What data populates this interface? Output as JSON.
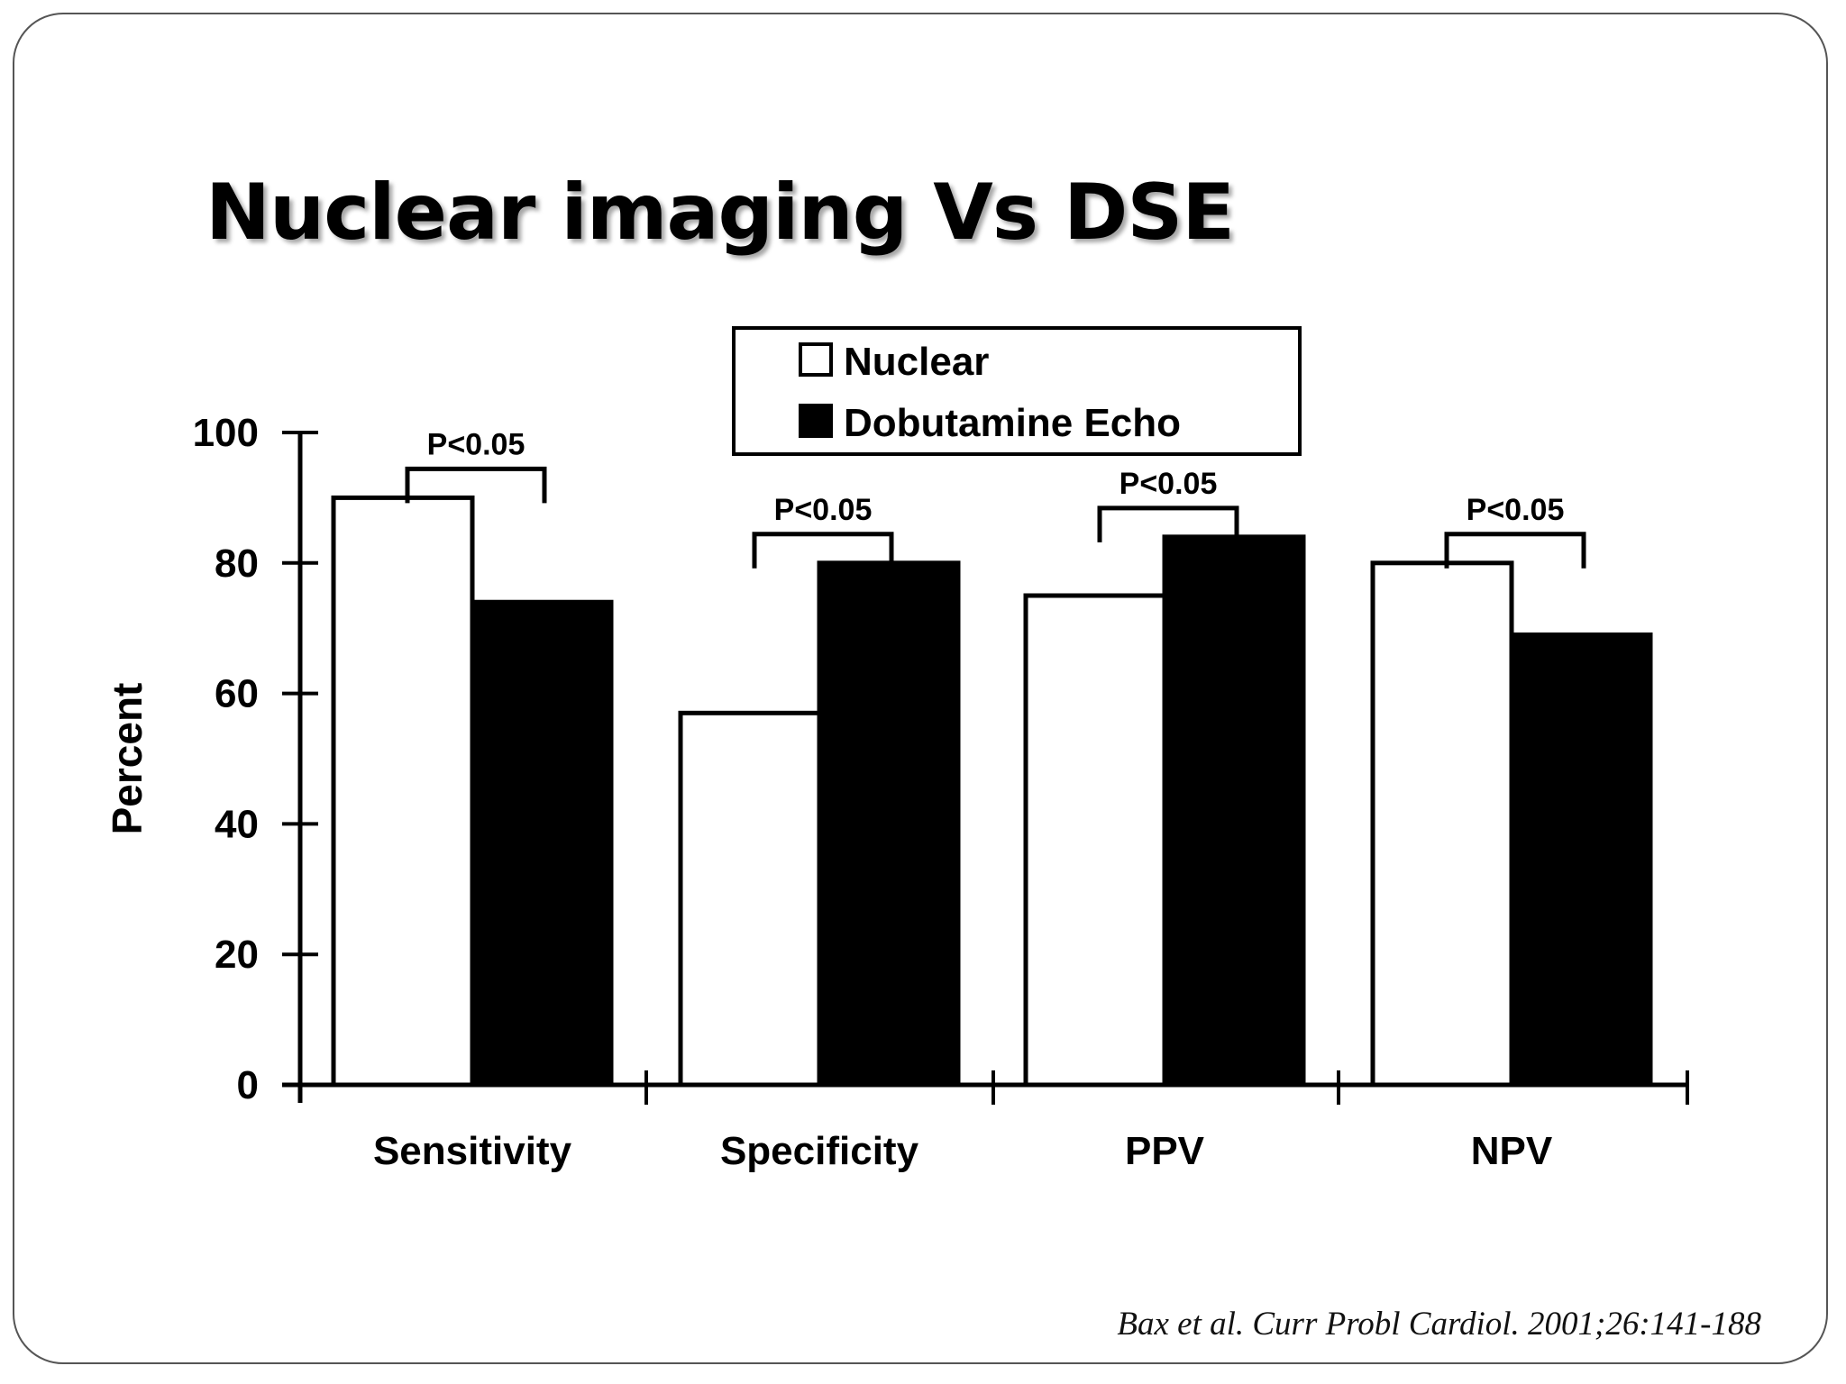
{
  "slide": {
    "title": "Nuclear imaging Vs DSE",
    "citation": "Bax et al. Curr Probl Cardiol. 2001;26:141-188"
  },
  "chart_data": {
    "type": "bar",
    "ylabel": "Percent",
    "xlabel": "",
    "ylim": [
      0,
      100
    ],
    "yticks": [
      0,
      20,
      40,
      60,
      80,
      100
    ],
    "categories": [
      "Sensitivity",
      "Specificity",
      "PPV",
      "NPV"
    ],
    "series": [
      {
        "name": "Nuclear",
        "color": "#ffffff",
        "values": [
          90,
          57,
          75,
          80
        ]
      },
      {
        "name": "Dobutamine Echo",
        "color": "#000000",
        "values": [
          74,
          80,
          84,
          69
        ]
      }
    ],
    "annotations": [
      "P<0.05",
      "P<0.05",
      "P<0.05",
      "P<0.05"
    ],
    "legend_position": "top-center",
    "grid": false
  }
}
